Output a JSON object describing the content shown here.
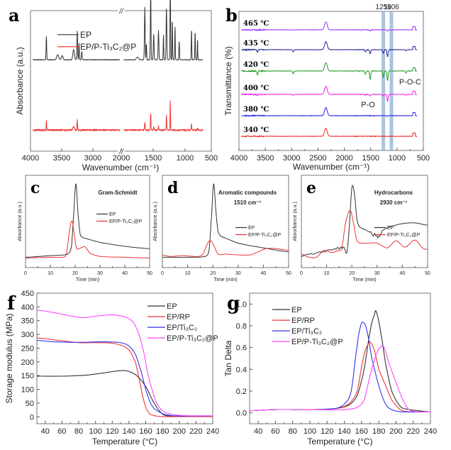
{
  "figure": {
    "panels": [
      "a",
      "b",
      "c",
      "d",
      "e",
      "f",
      "g"
    ]
  },
  "chart_data": [
    {
      "id": "a",
      "panel_label": "a",
      "type": "line",
      "xlabel": "Wavenumber (cm⁻¹)",
      "ylabel": "Absorbance (a.u.)",
      "x_ticks": [
        "4000",
        "3500",
        "3000",
        "2000",
        "1500",
        "1000",
        "500"
      ],
      "axis_break": "//",
      "xlim_left": [
        4000,
        2000
      ],
      "xlim_right": [
        2000,
        500
      ],
      "legend": {
        "placement": "top-left",
        "entries": [
          "EP",
          "EP/P-Ti₃C₂@P"
        ]
      },
      "series": [
        {
          "name": "EP",
          "color": "#333333",
          "offset": 0.62,
          "peaks": [
            [
              3650,
              0.28,
              15
            ],
            [
              3400,
              0.06,
              50
            ],
            [
              3300,
              0.05,
              40
            ],
            [
              3050,
              0.12,
              40
            ],
            [
              2970,
              0.34,
              18
            ],
            [
              2930,
              0.2,
              15
            ],
            [
              2870,
              0.1,
              20
            ],
            [
              1730,
              0.03,
              40
            ],
            [
              1608,
              0.63,
              14
            ],
            [
              1582,
              0.2,
              10
            ],
            [
              1510,
              0.83,
              12
            ],
            [
              1460,
              0.3,
              14
            ],
            [
              1380,
              0.35,
              14
            ],
            [
              1297,
              0.3,
              10
            ],
            [
              1247,
              0.62,
              14
            ],
            [
              1183,
              0.96,
              10
            ],
            [
              1150,
              0.5,
              10
            ],
            [
              1105,
              0.4,
              10
            ],
            [
              1035,
              0.22,
              12
            ],
            [
              830,
              0.38,
              10
            ],
            [
              770,
              0.35,
              10
            ],
            [
              730,
              0.27,
              8
            ]
          ]
        },
        {
          "name": "EP/P-Ti₃C₂@P",
          "color": "#ee3333",
          "offset": 0.12,
          "peaks": [
            [
              3650,
              0.13,
              12
            ],
            [
              3050,
              0.05,
              40
            ],
            [
              2970,
              0.14,
              15
            ],
            [
              1608,
              0.1,
              12
            ],
            [
              1510,
              0.25,
              10
            ],
            [
              1460,
              0.05,
              12
            ],
            [
              1380,
              0.05,
              12
            ],
            [
              1247,
              0.22,
              10
            ],
            [
              1183,
              0.42,
              8
            ],
            [
              830,
              0.09,
              10
            ],
            [
              730,
              0.04,
              8
            ]
          ]
        }
      ]
    },
    {
      "id": "b",
      "panel_label": "b",
      "type": "line",
      "xlabel": "Wavenumber (cm⁻¹)",
      "ylabel": "Transmittance (%)",
      "xlim": [
        4000,
        500
      ],
      "x_ticks": [
        "4000",
        "3500",
        "3000",
        "2500",
        "2000",
        "1500",
        "1000",
        "500"
      ],
      "highlight_bands": [
        {
          "label": "1259",
          "x": 1259
        },
        {
          "label": "1106",
          "x": 1106
        }
      ],
      "annotations": [
        {
          "text": "P-O",
          "x": 1500,
          "near": "400 ℃"
        },
        {
          "text": "P-O-C",
          "x": 820,
          "near": "420 ℃"
        }
      ],
      "series": [
        {
          "name": "465 ℃",
          "color": "#9933ff",
          "dips": [
            [
              3650,
              0.02
            ],
            [
              2970,
              0.02
            ],
            [
              1510,
              0.05
            ],
            [
              1180,
              0.06
            ],
            [
              1106,
              0.03
            ]
          ]
        },
        {
          "name": "435 ℃",
          "color": "#222299",
          "dips": [
            [
              3650,
              0.1
            ],
            [
              2970,
              0.1
            ],
            [
              1600,
              0.1
            ],
            [
              1510,
              0.2
            ],
            [
              1259,
              0.18
            ],
            [
              1180,
              0.34
            ],
            [
              830,
              0.06
            ]
          ]
        },
        {
          "name": "420 ℃",
          "color": "#229922",
          "dips": [
            [
              3650,
              0.18
            ],
            [
              2970,
              0.14
            ],
            [
              1600,
              0.15
            ],
            [
              1510,
              0.4
            ],
            [
              1259,
              0.32
            ],
            [
              1180,
              0.46
            ],
            [
              830,
              0.1
            ]
          ]
        },
        {
          "name": "400 ℃",
          "color": "#ee22ee",
          "dips": [
            [
              3650,
              0.06
            ],
            [
              2970,
              0.04
            ],
            [
              1600,
              0.04
            ],
            [
              1510,
              0.08
            ],
            [
              1259,
              0.08
            ],
            [
              1180,
              0.34
            ],
            [
              830,
              0.04
            ]
          ]
        },
        {
          "name": "380 ℃",
          "color": "#2222ee",
          "dips": [
            [
              1180,
              0.03
            ]
          ]
        },
        {
          "name": "340 ℃",
          "color": "#ee2222",
          "dips": []
        }
      ]
    },
    {
      "id": "c",
      "panel_label": "c",
      "type": "line",
      "title": "Gram-Schmidt",
      "title2": "",
      "xlabel": "Time (min)",
      "ylabel": "Absorbance (a.u.)",
      "xlim": [
        0,
        50
      ],
      "x_ticks": [
        "0",
        "10",
        "20",
        "30",
        "40",
        "50"
      ],
      "legend": {
        "placement": "right",
        "entries": [
          "EP",
          "EP/P-Ti₃C₂@P"
        ]
      },
      "series": [
        {
          "name": "EP",
          "color": "#333333",
          "x": [
            0,
            10,
            17,
            18.5,
            19.5,
            20.3,
            21.2,
            22,
            23,
            30,
            40,
            50
          ],
          "y": [
            0.06,
            0.08,
            0.1,
            0.2,
            0.65,
            1.0,
            0.6,
            0.36,
            0.31,
            0.25,
            0.2,
            0.17
          ]
        },
        {
          "name": "EP/P-Ti₃C₂@P",
          "color": "#ee3333",
          "x": [
            0,
            10,
            15.5,
            16.5,
            18,
            18.8,
            19.5,
            20.5,
            21.5,
            23,
            24,
            26,
            30,
            40,
            50
          ],
          "y": [
            0.05,
            0.06,
            0.06,
            0.12,
            0.45,
            0.52,
            0.38,
            0.18,
            0.17,
            0.19,
            0.19,
            0.11,
            0.07,
            0.06,
            0.05
          ]
        }
      ]
    },
    {
      "id": "d",
      "panel_label": "d",
      "type": "line",
      "title": "Aromatic compounds",
      "title2": "1510 cm⁻¹",
      "xlabel": "Time (min)",
      "ylabel": "Absorbance (a.u.)",
      "xlim": [
        0,
        50
      ],
      "x_ticks": [
        "0",
        "10",
        "20",
        "30",
        "40",
        "50"
      ],
      "legend": {
        "placement": "right",
        "entries": [
          "EP",
          "EP/P-Ti₃C₂@P"
        ]
      },
      "series": [
        {
          "name": "EP",
          "color": "#333333",
          "x": [
            0,
            10,
            17,
            18.5,
            19.5,
            20.3,
            21.2,
            22,
            23,
            30,
            40,
            50
          ],
          "y": [
            0.06,
            0.06,
            0.07,
            0.15,
            0.6,
            1.0,
            0.65,
            0.4,
            0.33,
            0.24,
            0.18,
            0.13
          ]
        },
        {
          "name": "EP/P-Ti₃C₂@P",
          "color": "#ee3333",
          "x": [
            0,
            3,
            8,
            14,
            16,
            18,
            19.2,
            20.5,
            22,
            25,
            30,
            35,
            38,
            41,
            45,
            50
          ],
          "y": [
            0.09,
            0.07,
            0.08,
            0.07,
            0.1,
            0.24,
            0.27,
            0.2,
            0.1,
            0.1,
            0.09,
            0.09,
            0.13,
            0.17,
            0.17,
            0.15
          ]
        }
      ]
    },
    {
      "id": "e",
      "panel_label": "e",
      "type": "line",
      "title": "Hydrocarbons",
      "title2": "2930 cm⁻¹",
      "xlabel": "Time (min)",
      "ylabel": "Absorbance (a.u.)",
      "xlim": [
        0,
        50
      ],
      "x_ticks": [
        "0",
        "10",
        "20",
        "30",
        "40",
        "50"
      ],
      "legend": {
        "placement": "right",
        "entries": [
          "EP",
          "EP/P-Ti₃C₂@P"
        ]
      },
      "series": [
        {
          "name": "EP",
          "color": "#333333",
          "x": [
            0,
            5,
            10,
            15,
            17,
            18,
            19,
            20,
            21,
            22,
            23,
            26,
            30,
            32,
            35,
            40,
            45,
            50
          ],
          "y": [
            0.08,
            0.1,
            0.14,
            0.18,
            0.18,
            0.12,
            0.45,
            0.95,
            0.88,
            0.55,
            0.45,
            0.4,
            0.33,
            0.4,
            0.45,
            0.49,
            0.5,
            0.47
          ]
        },
        {
          "name": "EP/P-Ti₃C₂@P",
          "color": "#ee3333",
          "x": [
            0,
            3,
            6,
            9,
            12,
            15,
            16,
            17.5,
            19.3,
            20.5,
            22,
            25,
            30,
            34,
            37.5,
            41,
            45,
            48,
            50
          ],
          "y": [
            0.1,
            0.06,
            0.06,
            0.15,
            0.12,
            0.15,
            0.18,
            0.5,
            0.66,
            0.52,
            0.27,
            0.24,
            0.24,
            0.18,
            0.27,
            0.19,
            0.28,
            0.18,
            0.16
          ]
        }
      ]
    },
    {
      "id": "f",
      "panel_label": "f",
      "type": "line",
      "xlabel": "Temperature (°C)",
      "ylabel": "Storage modulus (MPa)",
      "xlim": [
        30,
        240
      ],
      "ylim": [
        -25,
        450
      ],
      "x_ticks": [
        40,
        60,
        80,
        100,
        120,
        140,
        160,
        180,
        200,
        220,
        240
      ],
      "y_ticks": [
        0,
        50,
        100,
        150,
        200,
        250,
        300,
        350,
        400,
        450
      ],
      "legend": {
        "placement": "top-right",
        "entries": [
          "EP",
          "EP/RP",
          "EP/Ti₃C₂",
          "EP/P-Ti₃C₂@P"
        ]
      },
      "series": [
        {
          "name": "EP",
          "color": "#333333",
          "x": [
            30,
            60,
            90,
            110,
            130,
            140,
            150,
            160,
            170,
            180,
            190,
            200,
            240
          ],
          "y": [
            148,
            148,
            152,
            160,
            168,
            165,
            148,
            110,
            50,
            10,
            3,
            2,
            2
          ]
        },
        {
          "name": "EP/RP",
          "color": "#ee3333",
          "x": [
            30,
            60,
            80,
            100,
            120,
            135,
            142,
            148,
            152,
            156,
            160,
            165,
            175,
            200,
            240
          ],
          "y": [
            287,
            277,
            270,
            270,
            268,
            256,
            235,
            195,
            140,
            80,
            35,
            10,
            2,
            1,
            1
          ]
        },
        {
          "name": "EP/Ti₃C₂",
          "color": "#3333ee",
          "x": [
            30,
            50,
            80,
            110,
            130,
            140,
            148,
            155,
            160,
            165,
            170,
            180,
            190,
            200,
            240
          ],
          "y": [
            278,
            273,
            271,
            273,
            270,
            258,
            225,
            160,
            100,
            55,
            30,
            12,
            5,
            3,
            3
          ]
        },
        {
          "name": "EP/P-Ti₃C₂@P",
          "color": "#ff44ff",
          "x": [
            30,
            55,
            70,
            85,
            100,
            120,
            135,
            145,
            152,
            158,
            163,
            168,
            173,
            180,
            190,
            200,
            210,
            240
          ],
          "y": [
            388,
            377,
            367,
            361,
            366,
            371,
            364,
            345,
            300,
            230,
            150,
            95,
            50,
            22,
            10,
            6,
            4,
            4
          ]
        }
      ]
    },
    {
      "id": "g",
      "panel_label": "g",
      "type": "line",
      "xlabel": "Temperature (°C)",
      "ylabel": "Tan Delta",
      "xlim": [
        30,
        240
      ],
      "ylim": [
        -0.1,
        1.1
      ],
      "x_ticks": [
        40,
        60,
        80,
        100,
        120,
        140,
        160,
        180,
        200,
        220,
        240
      ],
      "y_ticks": [
        "0.0",
        "0.2",
        "0.4",
        "0.6",
        "0.8",
        "1.0"
      ],
      "legend": {
        "placement": "top-left",
        "entries": [
          "EP",
          "EP/RP",
          "EP/Ti₃C₂",
          "EP/P-Ti₃C₂@P"
        ]
      },
      "series": [
        {
          "name": "EP",
          "color": "#333333",
          "x": [
            30,
            60,
            100,
            130,
            145,
            155,
            163,
            170,
            175,
            177,
            182,
            188,
            195,
            205,
            215,
            240
          ],
          "y": [
            0.02,
            0.03,
            0.03,
            0.04,
            0.07,
            0.16,
            0.4,
            0.75,
            0.9,
            0.93,
            0.75,
            0.45,
            0.2,
            0.06,
            0.03,
            0.01
          ]
        },
        {
          "name": "EP/RP",
          "color": "#ee3333",
          "x": [
            30,
            60,
            100,
            130,
            145,
            155,
            162,
            167,
            170,
            175,
            180,
            188,
            195,
            205,
            215,
            240
          ],
          "y": [
            0.02,
            0.03,
            0.03,
            0.04,
            0.08,
            0.2,
            0.5,
            0.62,
            0.65,
            0.57,
            0.4,
            0.25,
            0.12,
            0.03,
            0.01,
            0.01
          ]
        },
        {
          "name": "EP/Ti₃C₂",
          "color": "#3333ee",
          "x": [
            30,
            60,
            100,
            130,
            140,
            148,
            155,
            159,
            162,
            166,
            172,
            180,
            188,
            195,
            205,
            240
          ],
          "y": [
            0.02,
            0.03,
            0.03,
            0.04,
            0.08,
            0.2,
            0.62,
            0.8,
            0.83,
            0.76,
            0.5,
            0.25,
            0.08,
            0.03,
            0.01,
            0.01
          ]
        },
        {
          "name": "EP/P-Ti₃C₂@P",
          "color": "#ff44ff",
          "x": [
            30,
            60,
            100,
            140,
            155,
            163,
            170,
            178,
            183,
            186,
            192,
            200,
            208,
            215,
            225,
            240
          ],
          "y": [
            0.02,
            0.03,
            0.03,
            0.03,
            0.05,
            0.12,
            0.35,
            0.55,
            0.61,
            0.6,
            0.45,
            0.28,
            0.12,
            0.03,
            0.01,
            0.01
          ]
        }
      ]
    }
  ]
}
